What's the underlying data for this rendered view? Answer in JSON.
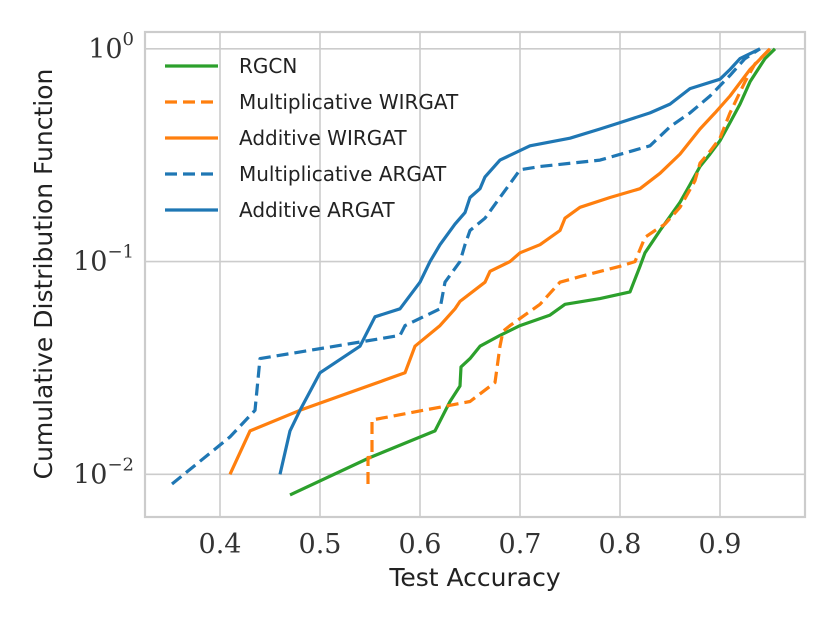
{
  "chart_data": {
    "type": "line",
    "title": "",
    "xlabel": "Test Accuracy",
    "ylabel": "Cumulative Distribution Function",
    "xlim": [
      0.325,
      0.985
    ],
    "ylim": [
      0.0063,
      1.2
    ],
    "yscale": "log",
    "grid": true,
    "legend_position": "top-left",
    "x_ticks": [
      {
        "value": 0.4,
        "label": "0.4"
      },
      {
        "value": 0.5,
        "label": "0.5"
      },
      {
        "value": 0.6,
        "label": "0.6"
      },
      {
        "value": 0.7,
        "label": "0.7"
      },
      {
        "value": 0.8,
        "label": "0.8"
      },
      {
        "value": 0.9,
        "label": "0.9"
      }
    ],
    "y_ticks": [
      {
        "value": 0.01,
        "base": "10",
        "exponent": "−2"
      },
      {
        "value": 0.1,
        "base": "10",
        "exponent": "−1"
      },
      {
        "value": 1,
        "base": "10",
        "exponent": "0"
      }
    ],
    "series": [
      {
        "name": "RGCN",
        "color": "#2ca02c",
        "dash": "solid",
        "x": [
          0.47,
          0.55,
          0.615,
          0.63,
          0.64,
          0.641,
          0.65,
          0.66,
          0.68,
          0.7,
          0.73,
          0.745,
          0.78,
          0.81,
          0.82,
          0.825,
          0.84,
          0.86,
          0.87,
          0.88,
          0.89,
          0.9,
          0.91,
          0.92,
          0.93,
          0.945,
          0.955
        ],
        "y": [
          0.008,
          0.012,
          0.016,
          0.022,
          0.026,
          0.032,
          0.035,
          0.04,
          0.045,
          0.05,
          0.056,
          0.063,
          0.067,
          0.072,
          0.095,
          0.11,
          0.14,
          0.19,
          0.23,
          0.28,
          0.32,
          0.37,
          0.45,
          0.55,
          0.7,
          0.9,
          1.0
        ]
      },
      {
        "name": "Multiplicative WIRGAT",
        "color": "#ff7f0e",
        "dash": "dashed",
        "x": [
          0.548,
          0.548,
          0.552,
          0.552,
          0.65,
          0.675,
          0.68,
          0.683,
          0.69,
          0.72,
          0.74,
          0.76,
          0.8,
          0.815,
          0.825,
          0.835,
          0.845,
          0.86,
          0.875,
          0.88,
          0.89,
          0.9,
          0.91,
          0.925,
          0.935,
          0.95
        ],
        "y": [
          0.009,
          0.012,
          0.012,
          0.018,
          0.022,
          0.027,
          0.04,
          0.047,
          0.05,
          0.063,
          0.08,
          0.085,
          0.095,
          0.1,
          0.13,
          0.14,
          0.15,
          0.18,
          0.24,
          0.29,
          0.33,
          0.38,
          0.5,
          0.7,
          0.85,
          1.0
        ]
      },
      {
        "name": "Additive WIRGAT",
        "color": "#ff7f0e",
        "dash": "solid",
        "x": [
          0.41,
          0.43,
          0.48,
          0.585,
          0.595,
          0.62,
          0.635,
          0.64,
          0.665,
          0.67,
          0.69,
          0.7,
          0.72,
          0.74,
          0.745,
          0.76,
          0.79,
          0.82,
          0.84,
          0.86,
          0.88,
          0.895,
          0.91,
          0.93,
          0.95
        ],
        "y": [
          0.01,
          0.016,
          0.02,
          0.03,
          0.04,
          0.05,
          0.06,
          0.065,
          0.08,
          0.09,
          0.1,
          0.11,
          0.12,
          0.14,
          0.16,
          0.18,
          0.2,
          0.22,
          0.26,
          0.32,
          0.42,
          0.5,
          0.6,
          0.8,
          1.0
        ]
      },
      {
        "name": "Multiplicative ARGAT",
        "color": "#1f77b4",
        "dash": "dashed",
        "x": [
          0.352,
          0.41,
          0.435,
          0.44,
          0.58,
          0.585,
          0.62,
          0.625,
          0.64,
          0.645,
          0.65,
          0.665,
          0.7,
          0.72,
          0.78,
          0.83,
          0.85,
          0.87,
          0.89,
          0.91,
          0.925,
          0.94
        ],
        "y": [
          0.009,
          0.015,
          0.02,
          0.035,
          0.045,
          0.05,
          0.06,
          0.08,
          0.1,
          0.12,
          0.14,
          0.16,
          0.27,
          0.28,
          0.3,
          0.35,
          0.43,
          0.5,
          0.6,
          0.75,
          0.9,
          1.0
        ]
      },
      {
        "name": "Additive ARGAT",
        "color": "#1f77b4",
        "dash": "solid",
        "x": [
          0.46,
          0.47,
          0.48,
          0.5,
          0.54,
          0.555,
          0.58,
          0.6,
          0.61,
          0.62,
          0.635,
          0.645,
          0.65,
          0.66,
          0.665,
          0.68,
          0.71,
          0.75,
          0.78,
          0.8,
          0.83,
          0.85,
          0.87,
          0.9,
          0.91,
          0.92,
          0.94
        ],
        "y": [
          0.01,
          0.016,
          0.02,
          0.03,
          0.04,
          0.055,
          0.06,
          0.08,
          0.1,
          0.12,
          0.15,
          0.17,
          0.2,
          0.22,
          0.25,
          0.3,
          0.35,
          0.38,
          0.42,
          0.45,
          0.5,
          0.55,
          0.65,
          0.72,
          0.8,
          0.9,
          1.0
        ]
      }
    ]
  }
}
